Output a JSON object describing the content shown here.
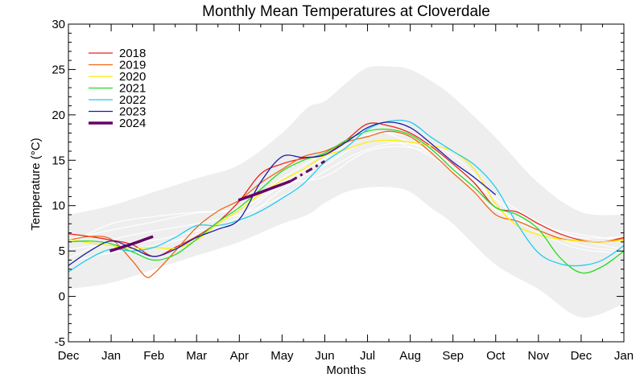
{
  "chart_data": {
    "type": "line",
    "title": "Monthly Mean Temperatures at Cloverdale",
    "xlabel": "Months",
    "ylabel": "Temperature (°C)",
    "categories": [
      "Dec",
      "Jan",
      "Feb",
      "Mar",
      "Apr",
      "May",
      "Jun",
      "Jul",
      "Aug",
      "Sep",
      "Oct",
      "Nov",
      "Dec",
      "Jan"
    ],
    "ylim": [
      -5,
      30
    ],
    "y_ticks": [
      -5,
      0,
      5,
      10,
      15,
      20,
      25,
      30
    ],
    "legend_position": "top-left",
    "grid": false,
    "envelope_color": "#eeeeee",
    "envelope": {
      "x": [
        0,
        1,
        2,
        3,
        4,
        5,
        5.6,
        6,
        6.5,
        7,
        7.6,
        8,
        8.5,
        9,
        10,
        11,
        12,
        13
      ],
      "upper": [
        9,
        10,
        11.5,
        13,
        14.5,
        18,
        20.8,
        21.5,
        23.5,
        25.2,
        25.3,
        25,
        23.7,
        22,
        17.5,
        12.5,
        9.3,
        9
      ],
      "lower": [
        0.8,
        1.5,
        3,
        4.5,
        6,
        8,
        9,
        10.3,
        11.5,
        12,
        12,
        11.5,
        9.7,
        8,
        3.5,
        0.8,
        -2.3,
        -0.8
      ]
    },
    "background_lines_color": "#ffffff",
    "background_lines": [
      {
        "x": [
          0,
          1,
          2,
          3,
          4,
          5,
          6,
          7,
          8,
          9,
          10,
          11,
          12,
          13
        ],
        "y": [
          6.3,
          7.3,
          8.2,
          9.2,
          9.6,
          12.5,
          15.2,
          17.8,
          17.6,
          15.5,
          11.2,
          8.2,
          6.2,
          5.2
        ]
      },
      {
        "x": [
          0,
          1,
          2,
          3,
          4,
          5,
          6,
          7,
          8,
          9,
          10,
          11,
          12,
          13
        ],
        "y": [
          4.2,
          6.2,
          7.2,
          8.0,
          9.0,
          11.0,
          13.8,
          16.2,
          16.8,
          14.2,
          10.0,
          7.0,
          5.2,
          4.8
        ]
      },
      {
        "x": [
          0,
          1,
          2,
          3,
          4,
          5,
          6,
          7,
          8,
          9,
          10,
          11,
          12,
          13
        ],
        "y": [
          5.8,
          8.0,
          8.8,
          9.3,
          9.8,
          13.0,
          15.8,
          18.2,
          17.0,
          14.8,
          10.8,
          8.0,
          6.5,
          6.6
        ]
      },
      {
        "x": [
          0,
          1,
          2,
          3,
          4,
          5,
          6,
          7,
          8,
          9,
          10,
          11,
          12,
          13
        ],
        "y": [
          5.2,
          5.8,
          6.2,
          7.2,
          8.2,
          11.8,
          14.5,
          17.0,
          16.5,
          13.8,
          9.5,
          7.8,
          6.8,
          6.2
        ]
      },
      {
        "x": [
          0,
          1,
          2,
          3,
          4,
          5,
          6,
          7,
          8,
          9,
          10,
          11,
          12,
          13
        ],
        "y": [
          3.8,
          4.8,
          5.6,
          6.8,
          8.8,
          12.2,
          13.2,
          16.0,
          16.4,
          14.6,
          10.6,
          7.4,
          5.6,
          5.0
        ]
      }
    ],
    "series": [
      {
        "name": "2018",
        "color": "#e8231c",
        "width": 1.3,
        "x": [
          0,
          0.5,
          1,
          1.5,
          2,
          2.5,
          3,
          3.5,
          4,
          4.5,
          5,
          5.5,
          6,
          6.5,
          7,
          7.5,
          8,
          8.5,
          9,
          9.5,
          10,
          10.5,
          11,
          11.5,
          12,
          12.5,
          13
        ],
        "y": [
          6.9,
          6.6,
          6.2,
          5.7,
          4.4,
          5.4,
          6.6,
          8.2,
          10.5,
          13.5,
          14.6,
          15.2,
          15.6,
          17.2,
          19.0,
          18.8,
          18.0,
          16.5,
          14.6,
          12.5,
          9.8,
          9.3,
          8.0,
          6.9,
          6.2,
          6.0,
          6.5
        ]
      },
      {
        "name": "2019",
        "color": "#f06616",
        "width": 1.3,
        "x": [
          0,
          0.5,
          1,
          1.5,
          1.8,
          2,
          2.5,
          3,
          3.5,
          4,
          4.5,
          5,
          5.5,
          6,
          6.5,
          7,
          7.5,
          8,
          8.5,
          9,
          9.5,
          10,
          10.5,
          11,
          11.5,
          12,
          12.5,
          13
        ],
        "y": [
          6.2,
          6.6,
          6.3,
          3.9,
          2.2,
          2.5,
          5.0,
          7.6,
          9.4,
          10.6,
          12.5,
          14.0,
          15.4,
          16.0,
          17.0,
          17.6,
          18.2,
          17.6,
          15.8,
          13.6,
          11.5,
          9.0,
          8.3,
          7.3,
          6.4,
          6.1,
          6.0,
          6.4
        ]
      },
      {
        "name": "2020",
        "color": "#ffee00",
        "width": 1.3,
        "x": [
          0,
          0.5,
          1,
          1.5,
          2,
          2.5,
          3,
          3.5,
          4,
          4.5,
          5,
          5.5,
          6,
          6.5,
          7,
          7.5,
          8,
          8.5,
          9,
          9.5,
          10,
          10.5,
          11,
          11.5,
          12,
          12.5,
          13
        ],
        "y": [
          6.3,
          5.9,
          5.6,
          5.3,
          5.4,
          5.3,
          6.2,
          8.0,
          9.5,
          11.3,
          12.8,
          14.0,
          15.5,
          16.2,
          17.0,
          17.2,
          17.0,
          16.6,
          16.0,
          14.0,
          10.2,
          7.8,
          6.8,
          6.3,
          6.1,
          6.0,
          6.2
        ]
      },
      {
        "name": "2021",
        "color": "#22dd22",
        "width": 1.3,
        "x": [
          0,
          0.5,
          1,
          1.5,
          2,
          2.5,
          3,
          3.5,
          4,
          4.5,
          5,
          5.5,
          6,
          6.5,
          7,
          7.5,
          8,
          8.5,
          9,
          9.5,
          10,
          10.5,
          11,
          11.5,
          12,
          12.5,
          13
        ],
        "y": [
          6.0,
          6.1,
          5.8,
          4.9,
          4.0,
          4.6,
          6.3,
          8.2,
          9.8,
          11.8,
          13.8,
          15.0,
          15.8,
          17.2,
          18.2,
          18.4,
          17.8,
          16.2,
          14.0,
          12.0,
          9.8,
          9.0,
          7.4,
          4.3,
          2.6,
          3.3,
          5.0
        ]
      },
      {
        "name": "2022",
        "color": "#22ccee",
        "width": 1.3,
        "x": [
          0,
          0.5,
          1,
          1.5,
          2,
          2.5,
          3,
          3.5,
          4,
          4.5,
          5,
          5.5,
          6,
          6.5,
          7,
          7.5,
          8,
          8.5,
          9,
          9.5,
          10,
          10.5,
          11,
          11.5,
          12,
          12.5,
          13
        ],
        "y": [
          2.7,
          4.2,
          5.2,
          5.0,
          5.4,
          6.5,
          7.8,
          7.8,
          8.4,
          9.4,
          10.8,
          12.4,
          14.8,
          16.4,
          18.4,
          19.3,
          19.2,
          17.5,
          16.0,
          14.5,
          12.0,
          8.0,
          4.8,
          3.6,
          3.4,
          4.0,
          5.6
        ]
      },
      {
        "name": "2023",
        "color": "#1a1aaa",
        "width": 1.3,
        "x": [
          0,
          0.5,
          1,
          1.5,
          2,
          2.5,
          3,
          3.5,
          4,
          4.5,
          5,
          5.5,
          6,
          6.5,
          7,
          7.5,
          8,
          8.5,
          9,
          9.5,
          10
        ],
        "y": [
          3.4,
          5.0,
          6.1,
          5.3,
          4.4,
          5.2,
          6.5,
          7.4,
          8.5,
          12.6,
          15.4,
          15.3,
          15.6,
          17.0,
          18.6,
          19.2,
          18.6,
          16.8,
          14.8,
          13.1,
          11.2
        ]
      },
      {
        "name": "2024",
        "color": "#660066",
        "width": 3.5,
        "x": [
          0.97,
          1.5,
          1.98
        ],
        "y": [
          5.0,
          5.8,
          6.6
        ]
      }
    ],
    "series_2024_extra_segment": {
      "x": [
        3.98,
        4.4,
        4.8,
        5.2
      ],
      "y": [
        10.6,
        11.3,
        12.0,
        12.7
      ]
    },
    "series_2024_dashed_segment": {
      "x": [
        5.2,
        5.6,
        6.0
      ],
      "y": [
        12.7,
        13.8,
        14.9
      ]
    }
  }
}
